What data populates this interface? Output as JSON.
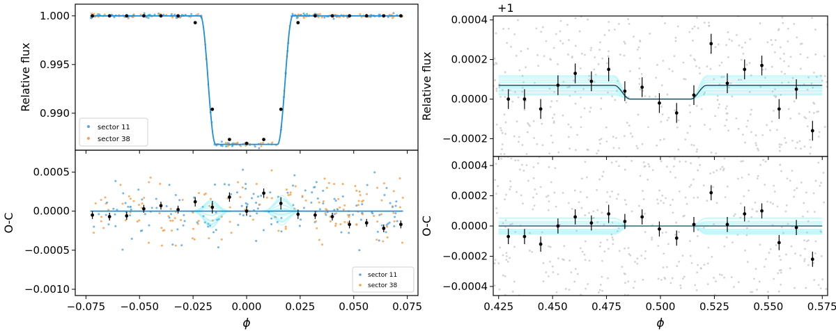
{
  "colors": {
    "sector11": "#5aa6e0",
    "sector38": "#f7a14c",
    "model": "#1a8fd8",
    "mcmc": "#3ee8f0",
    "binned": "#000000",
    "unbinned_gray": "#c8c8c8",
    "frame": "#000000"
  },
  "chart_data": [
    {
      "id": "transit",
      "type": "scatter",
      "xlim": [
        -0.08,
        0.08
      ],
      "ylim": [
        0.9862,
        1.0012
      ],
      "ylabel": "Relative flux",
      "yticks": [
        "1.000",
        "0.995",
        "0.990"
      ],
      "yticks_values": [
        1.0,
        0.995,
        0.99
      ],
      "legend": {
        "position": "lower-left",
        "entries": [
          "sector 11",
          "sector 38"
        ]
      },
      "model": {
        "depth": 0.0132,
        "half_width": 0.0215,
        "ingress": 0.007
      },
      "binned": {
        "x": [
          -0.072,
          -0.064,
          -0.056,
          -0.048,
          -0.04,
          -0.032,
          -0.024,
          -0.016,
          -0.008,
          0.0,
          0.008,
          0.016,
          0.024,
          0.032,
          0.04,
          0.048,
          0.056,
          0.064,
          0.072
        ],
        "y": [
          1.0,
          1.0,
          1.0,
          1.0,
          1.0,
          1.0,
          0.9993,
          0.9904,
          0.9873,
          0.9869,
          0.9873,
          0.9904,
          0.9993,
          1.0,
          1.0,
          1.0,
          1.0,
          1.0,
          1.0
        ]
      }
    },
    {
      "id": "transit_residuals",
      "type": "scatter",
      "xlim": [
        -0.08,
        0.08
      ],
      "ylim": [
        -0.00108,
        0.00078
      ],
      "xlabel": "ϕ",
      "ylabel": "O-C",
      "xticks": [
        "−0.075",
        "−0.050",
        "−0.025",
        "0.000",
        "0.025",
        "0.050",
        "0.075"
      ],
      "xticks_values": [
        -0.075,
        -0.05,
        -0.025,
        0.0,
        0.025,
        0.05,
        0.075
      ],
      "yticks": [
        "0.0005",
        "0.0000",
        "−0.0005",
        "−0.0010"
      ],
      "yticks_values": [
        0.0005,
        0.0,
        -0.0005,
        -0.001
      ],
      "legend": {
        "position": "lower-right",
        "entries": [
          "sector 11",
          "sector 38"
        ]
      },
      "binned": {
        "x": [
          -0.072,
          -0.064,
          -0.056,
          -0.048,
          -0.04,
          -0.032,
          -0.024,
          -0.016,
          -0.008,
          0.0,
          0.008,
          0.016,
          0.024,
          0.032,
          0.04,
          0.048,
          0.056,
          0.064,
          0.072
        ],
        "y": [
          -5e-05,
          -7e-05,
          -6e-05,
          3e-05,
          7e-05,
          2e-05,
          0.00012,
          5e-05,
          0.00018,
          0.0,
          0.00023,
          0.0001,
          -4e-05,
          -5e-05,
          -7e-05,
          -0.00017,
          -0.00015,
          -0.00022,
          -0.00017
        ],
        "err": [
          5e-05,
          5e-05,
          5e-05,
          5e-05,
          5e-05,
          5e-05,
          6e-05,
          8e-05,
          6e-05,
          6e-05,
          6e-05,
          8e-05,
          6e-05,
          5e-05,
          5e-05,
          5e-05,
          5e-05,
          5e-05,
          5e-05
        ]
      }
    },
    {
      "id": "eclipse",
      "type": "scatter",
      "xlim": [
        0.4225,
        0.5775
      ],
      "ylim": [
        -0.00029,
        0.00042
      ],
      "ylabel": "Relative flux",
      "offset_label": "+1",
      "yticks": [
        "0.0004",
        "0.0002",
        "0.0000",
        "−0.0002"
      ],
      "yticks_values": [
        0.0004,
        0.0002,
        0.0,
        -0.0002
      ],
      "model": {
        "level": 7e-05,
        "half_width": 0.0215,
        "ingress": 0.0075
      },
      "binned": {
        "x": [
          0.4295,
          0.437,
          0.4445,
          0.4525,
          0.4605,
          0.468,
          0.476,
          0.4835,
          0.4915,
          0.4995,
          0.5075,
          0.5155,
          0.5235,
          0.531,
          0.539,
          0.547,
          0.555,
          0.563,
          0.5705
        ],
        "y": [
          0.0,
          0.0,
          -5e-05,
          7e-05,
          0.00013,
          9e-05,
          0.00015,
          4e-05,
          6e-05,
          -2e-05,
          -7e-05,
          2e-05,
          0.00028,
          8e-05,
          0.00015,
          0.00017,
          -5e-05,
          5e-05,
          -0.00016
        ],
        "err": [
          5e-05,
          5e-05,
          5e-05,
          5e-05,
          5e-05,
          5e-05,
          6e-05,
          5e-05,
          5e-05,
          5e-05,
          5e-05,
          5e-05,
          5e-05,
          5e-05,
          5e-05,
          5e-05,
          5e-05,
          5e-05,
          5e-05
        ]
      }
    },
    {
      "id": "eclipse_residuals",
      "type": "scatter",
      "xlim": [
        0.4225,
        0.5775
      ],
      "ylim": [
        -0.00046,
        0.00046
      ],
      "xlabel": "ϕ",
      "ylabel": "O-C",
      "xticks": [
        "0.425",
        "0.450",
        "0.475",
        "0.500",
        "0.525",
        "0.550",
        "0.575"
      ],
      "xticks_values": [
        0.425,
        0.45,
        0.475,
        0.5,
        0.525,
        0.55,
        0.575
      ],
      "yticks": [
        "0.0004",
        "0.0002",
        "0.0000",
        "−0.0002",
        "−0.0004"
      ],
      "yticks_values": [
        0.0004,
        0.0002,
        0.0,
        -0.0002,
        -0.0004
      ],
      "binned": {
        "x": [
          0.4295,
          0.437,
          0.4445,
          0.4525,
          0.4605,
          0.468,
          0.476,
          0.4835,
          0.4915,
          0.4995,
          0.5075,
          0.5155,
          0.5235,
          0.531,
          0.539,
          0.547,
          0.555,
          0.563,
          0.5705
        ],
        "y": [
          -7e-05,
          -7e-05,
          -0.00012,
          0.0,
          6e-05,
          2e-05,
          8e-05,
          3e-05,
          6e-05,
          -2e-05,
          -8e-05,
          1e-05,
          0.00022,
          1e-05,
          8e-05,
          0.0001,
          -0.00011,
          -1e-05,
          -0.00022
        ],
        "err": [
          5e-05,
          5e-05,
          5e-05,
          5e-05,
          5e-05,
          5e-05,
          6e-05,
          5e-05,
          5e-05,
          5e-05,
          5e-05,
          5e-05,
          5e-05,
          5e-05,
          5e-05,
          5e-05,
          5e-05,
          5e-05,
          5e-05
        ]
      }
    }
  ]
}
